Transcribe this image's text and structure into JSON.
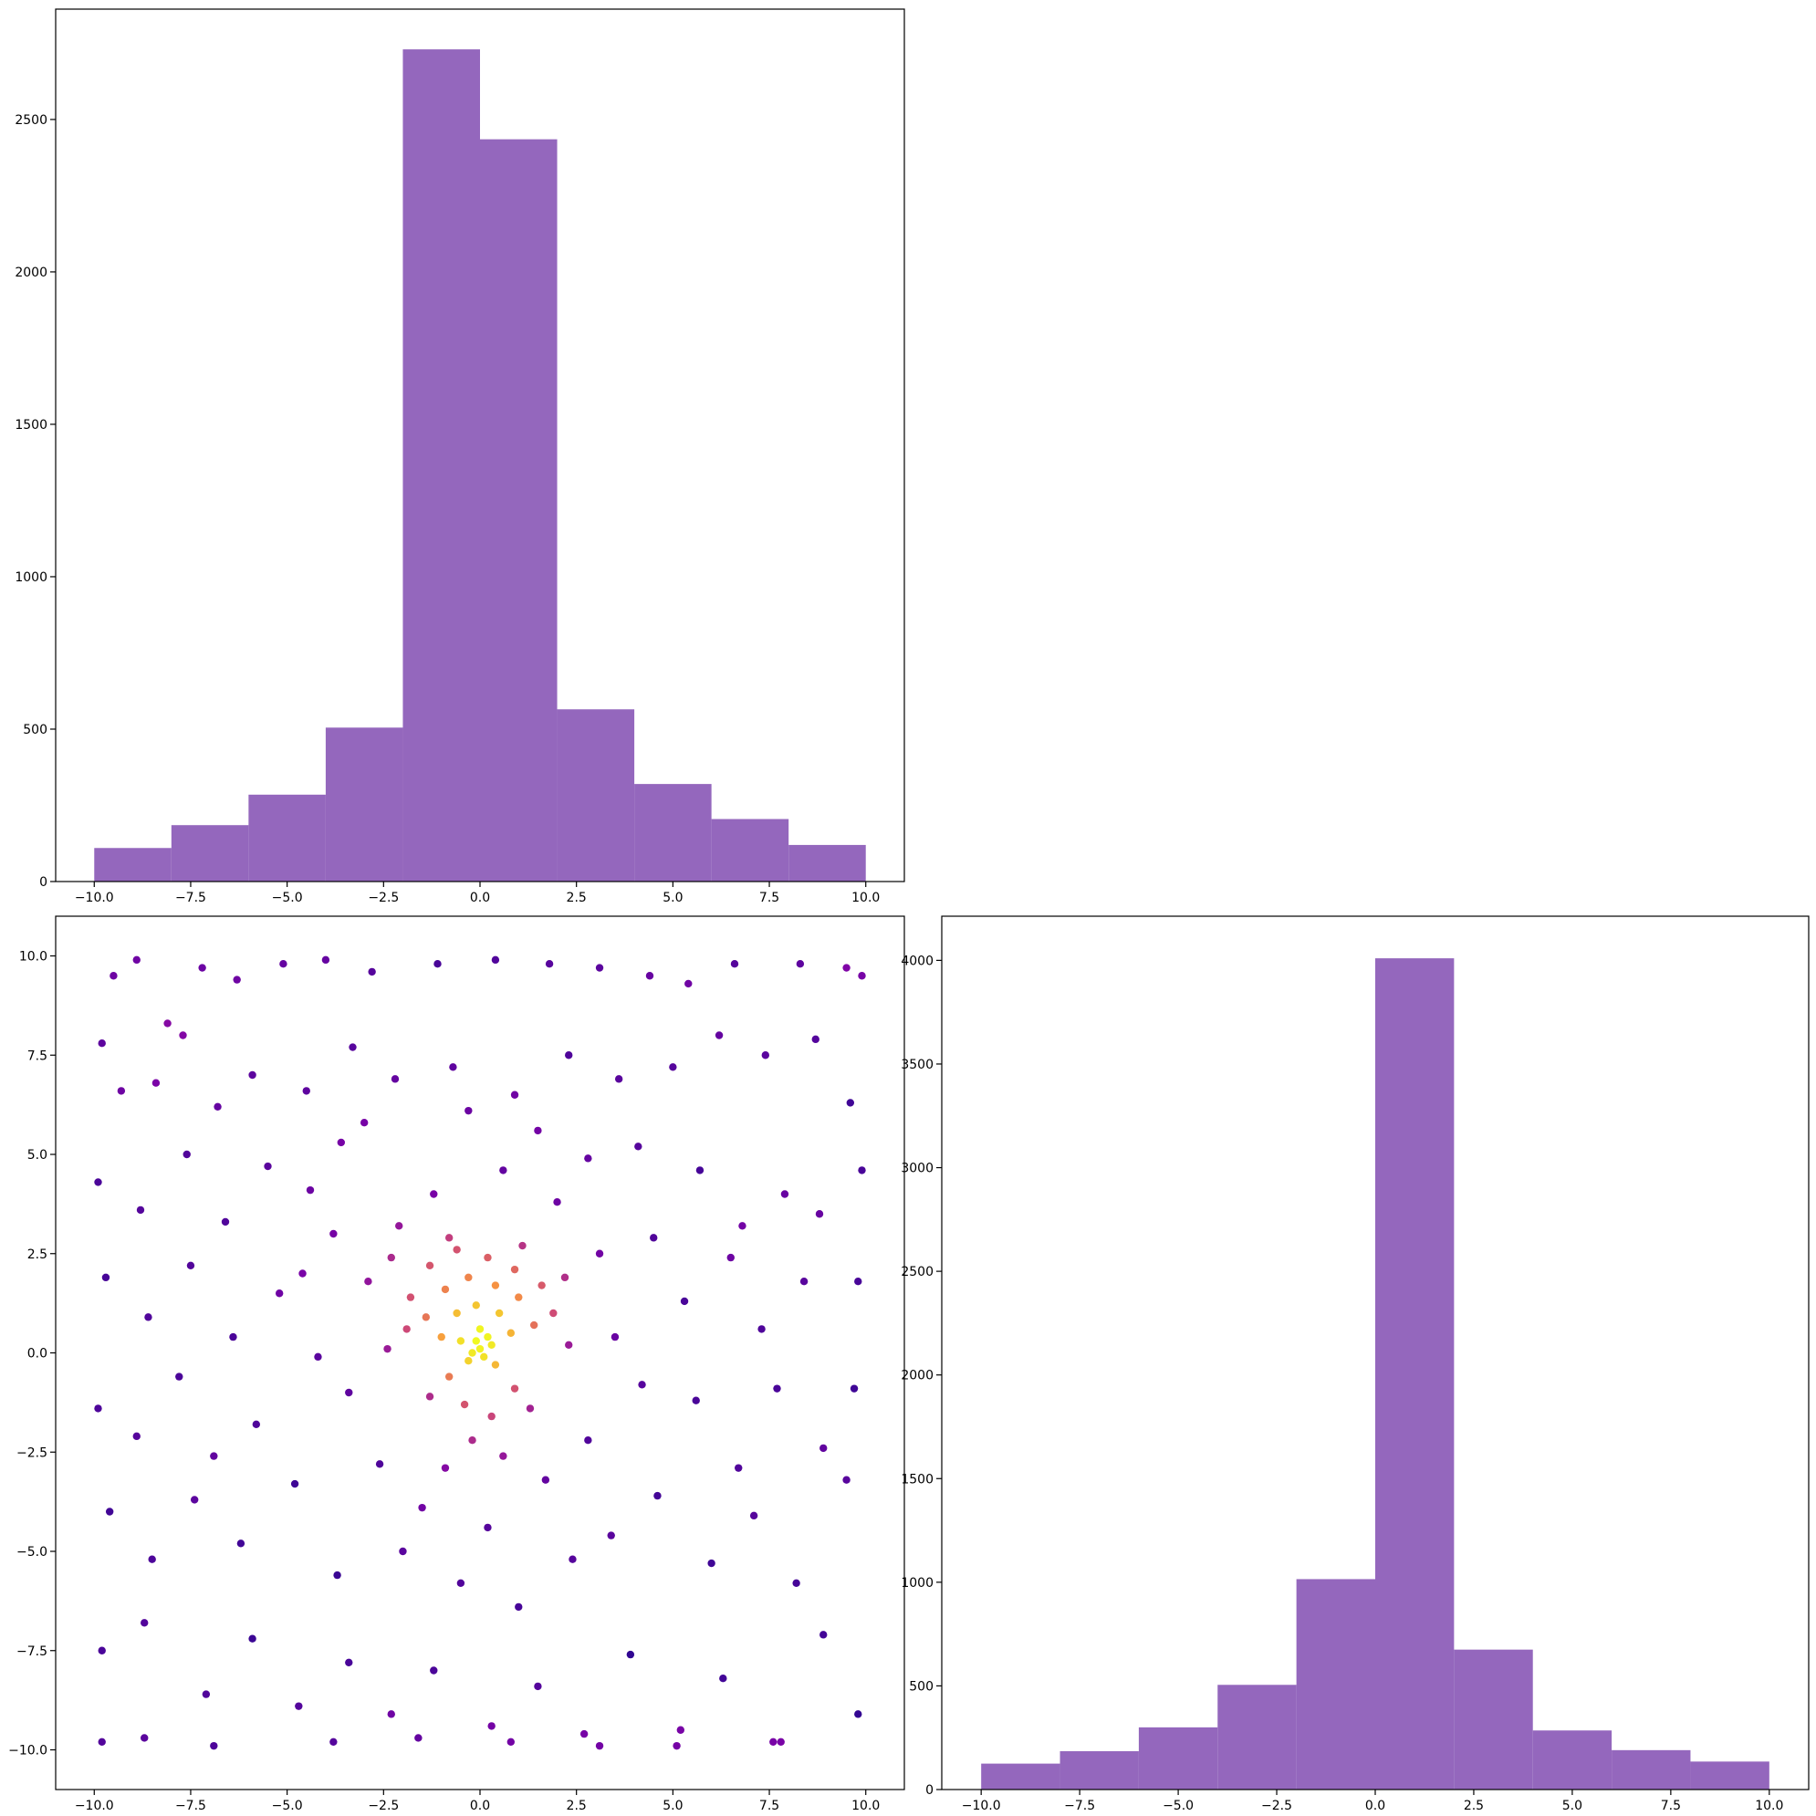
{
  "chart_data": [
    {
      "type": "histogram",
      "color": "#9467bd",
      "bins": [
        -10,
        -8,
        -6,
        -4,
        -2,
        0,
        2,
        4,
        6,
        8,
        10
      ],
      "values": [
        110,
        185,
        285,
        505,
        2730,
        2435,
        565,
        320,
        205,
        120
      ],
      "xlim": [
        -11,
        11
      ],
      "ylim": [
        0,
        2862
      ],
      "xticks": [
        {
          "value": -10,
          "label": "−10.0"
        },
        {
          "value": -7.5,
          "label": "−7.5"
        },
        {
          "value": -5,
          "label": "−5.0"
        },
        {
          "value": -2.5,
          "label": "−2.5"
        },
        {
          "value": 0,
          "label": "0.0"
        },
        {
          "value": 2.5,
          "label": "2.5"
        },
        {
          "value": 5,
          "label": "5.0"
        },
        {
          "value": 7.5,
          "label": "7.5"
        },
        {
          "value": 10,
          "label": "10.0"
        }
      ],
      "yticks": [
        0,
        500,
        1000,
        1500,
        2000,
        2500
      ]
    },
    {
      "type": "scatter",
      "colormap": "plasma",
      "x": [
        -9.8,
        -9.5,
        -8.9,
        -8.1,
        -7.2,
        -6.3,
        -5.1,
        -4.0,
        -2.8,
        -1.1,
        0.4,
        1.8,
        3.1,
        4.4,
        5.4,
        6.6,
        8.3,
        9.5,
        9.9,
        -9.3,
        -8.4,
        -7.7,
        -6.8,
        -5.9,
        -4.5,
        -3.3,
        -2.2,
        -0.7,
        0.9,
        2.3,
        3.6,
        5.0,
        6.2,
        7.4,
        8.7,
        9.6,
        -9.9,
        -8.8,
        -7.6,
        -6.6,
        -5.5,
        -4.4,
        -3.6,
        2.8,
        4.1,
        5.7,
        6.8,
        7.9,
        8.8,
        9.9,
        -9.7,
        -8.6,
        -7.5,
        -6.4,
        -5.2,
        5.3,
        6.5,
        7.3,
        8.4,
        9.8,
        -9.9,
        -8.9,
        -7.8,
        -6.9,
        -5.8,
        5.6,
        6.7,
        7.7,
        8.9,
        9.7,
        -9.6,
        -8.5,
        -7.4,
        -6.2,
        -4.8,
        -3.7,
        3.4,
        4.6,
        6.0,
        7.1,
        8.2,
        9.5,
        -9.8,
        -8.7,
        -7.1,
        -5.9,
        -4.7,
        -3.4,
        -2.3,
        -1.2,
        0.3,
        1.5,
        2.7,
        3.9,
        5.2,
        6.3,
        7.6,
        8.9,
        9.8,
        -9.8,
        -8.7,
        -6.9,
        -3.8,
        -1.6,
        0.8,
        3.1,
        5.1,
        7.8,
        -3.8,
        -2.9,
        -3.4,
        -2.6,
        -1.5,
        0.2,
        1.7,
        2.8,
        3.5,
        3.1,
        2.0,
        0.6,
        -1.2,
        -2.1,
        -4.2,
        4.2,
        -0.5,
        1.0,
        -2.0,
        2.4,
        -3.0,
        1.5,
        -0.3,
        4.5,
        -4.6,
        -1.8,
        -1.3,
        -0.6,
        0.2,
        0.9,
        1.6,
        1.9,
        -1.9,
        -1.4,
        -0.9,
        -0.3,
        0.4,
        1.0,
        1.4,
        -1.0,
        -0.6,
        -0.1,
        0.5,
        0.8,
        -0.5,
        0.0,
        0.3,
        -0.2,
        0.1,
        0.0,
        -0.1,
        0.2,
        -0.3,
        0.4,
        -0.8,
        0.9,
        -0.4,
        0.3,
        -0.2,
        1.3,
        -1.3,
        0.6,
        -0.9,
        2.3,
        -2.4,
        2.2,
        -2.3,
        1.1,
        -0.8
      ],
      "y": [
        7.8,
        9.5,
        9.9,
        8.3,
        9.7,
        9.4,
        9.8,
        9.9,
        9.6,
        9.8,
        9.9,
        9.8,
        9.7,
        9.5,
        9.3,
        9.8,
        9.8,
        9.7,
        9.5,
        6.6,
        6.8,
        8.0,
        6.2,
        7.0,
        6.6,
        7.7,
        6.9,
        7.2,
        6.5,
        7.5,
        6.9,
        7.2,
        8.0,
        7.5,
        7.9,
        6.3,
        4.3,
        3.6,
        5.0,
        3.3,
        4.7,
        4.1,
        5.3,
        4.9,
        5.2,
        4.6,
        3.2,
        4.0,
        3.5,
        4.6,
        1.9,
        0.9,
        2.2,
        0.4,
        1.5,
        1.3,
        2.4,
        0.6,
        1.8,
        1.8,
        -1.4,
        -2.1,
        -0.6,
        -2.6,
        -1.8,
        -1.2,
        -2.9,
        -0.9,
        -2.4,
        -0.9,
        -4.0,
        -5.2,
        -3.7,
        -4.8,
        -3.3,
        -5.6,
        -4.6,
        -3.6,
        -5.3,
        -4.1,
        -5.8,
        -3.2,
        -7.5,
        -6.8,
        -8.6,
        -7.2,
        -8.9,
        -7.8,
        -9.1,
        -8.0,
        -9.4,
        -8.4,
        -9.6,
        -7.6,
        -9.5,
        -8.2,
        -9.8,
        -7.1,
        -9.1,
        -9.8,
        -9.7,
        -9.9,
        -9.8,
        -9.7,
        -9.8,
        -9.9,
        -9.9,
        -9.8,
        3.0,
        1.8,
        -1.0,
        -2.8,
        -3.9,
        -4.4,
        -3.2,
        -2.2,
        0.4,
        2.5,
        3.8,
        4.6,
        4.0,
        3.2,
        -0.1,
        -0.8,
        -5.8,
        -6.4,
        -5.0,
        -5.2,
        5.8,
        5.6,
        6.1,
        2.9,
        2.0,
        1.4,
        2.2,
        2.6,
        2.4,
        2.1,
        1.7,
        1.0,
        0.6,
        0.9,
        1.6,
        1.9,
        1.7,
        1.4,
        0.7,
        0.4,
        1.0,
        1.2,
        1.0,
        0.5,
        0.3,
        0.6,
        0.2,
        0.0,
        -0.1,
        0.1,
        0.3,
        0.4,
        -0.2,
        -0.3,
        -0.6,
        -0.9,
        -1.3,
        -1.6,
        -2.2,
        -1.4,
        -1.1,
        -2.6,
        -2.9,
        0.2,
        0.1,
        1.9,
        2.4,
        2.7,
        2.9
      ],
      "xlim": [
        -11,
        11
      ],
      "ylim": [
        -11,
        11
      ],
      "xticks": [
        {
          "value": -10,
          "label": "−10.0"
        },
        {
          "value": -7.5,
          "label": "−7.5"
        },
        {
          "value": -5,
          "label": "−5.0"
        },
        {
          "value": -2.5,
          "label": "−2.5"
        },
        {
          "value": 0,
          "label": "0.0"
        },
        {
          "value": 2.5,
          "label": "2.5"
        },
        {
          "value": 5,
          "label": "5.0"
        },
        {
          "value": 7.5,
          "label": "7.5"
        },
        {
          "value": 10,
          "label": "10.0"
        }
      ],
      "yticks": [
        {
          "value": -10,
          "label": "−10.0"
        },
        {
          "value": -7.5,
          "label": "−7.5"
        },
        {
          "value": -5,
          "label": "−5.0"
        },
        {
          "value": -2.5,
          "label": "−2.5"
        },
        {
          "value": 0,
          "label": "0.0"
        },
        {
          "value": 2.5,
          "label": "2.5"
        },
        {
          "value": 5,
          "label": "5.0"
        },
        {
          "value": 7.5,
          "label": "7.5"
        },
        {
          "value": 10,
          "label": "10.0"
        }
      ]
    },
    {
      "type": "histogram",
      "color": "#9467bd",
      "bins": [
        -10,
        -8,
        -6,
        -4,
        -2,
        0,
        2,
        4,
        6,
        8,
        10
      ],
      "values": [
        125,
        185,
        300,
        505,
        1015,
        4010,
        675,
        285,
        190,
        135
      ],
      "xlim": [
        -11,
        11
      ],
      "ylim": [
        0,
        4213
      ],
      "xticks": [
        {
          "value": -10,
          "label": "−10.0"
        },
        {
          "value": -7.5,
          "label": "−7.5"
        },
        {
          "value": -5,
          "label": "−5.0"
        },
        {
          "value": -2.5,
          "label": "−2.5"
        },
        {
          "value": 0,
          "label": "0.0"
        },
        {
          "value": 2.5,
          "label": "2.5"
        },
        {
          "value": 5,
          "label": "5.0"
        },
        {
          "value": 7.5,
          "label": "7.5"
        },
        {
          "value": 10,
          "label": "10.0"
        }
      ],
      "yticks": [
        0,
        500,
        1000,
        1500,
        2000,
        2500,
        3000,
        3500,
        4000
      ]
    }
  ]
}
